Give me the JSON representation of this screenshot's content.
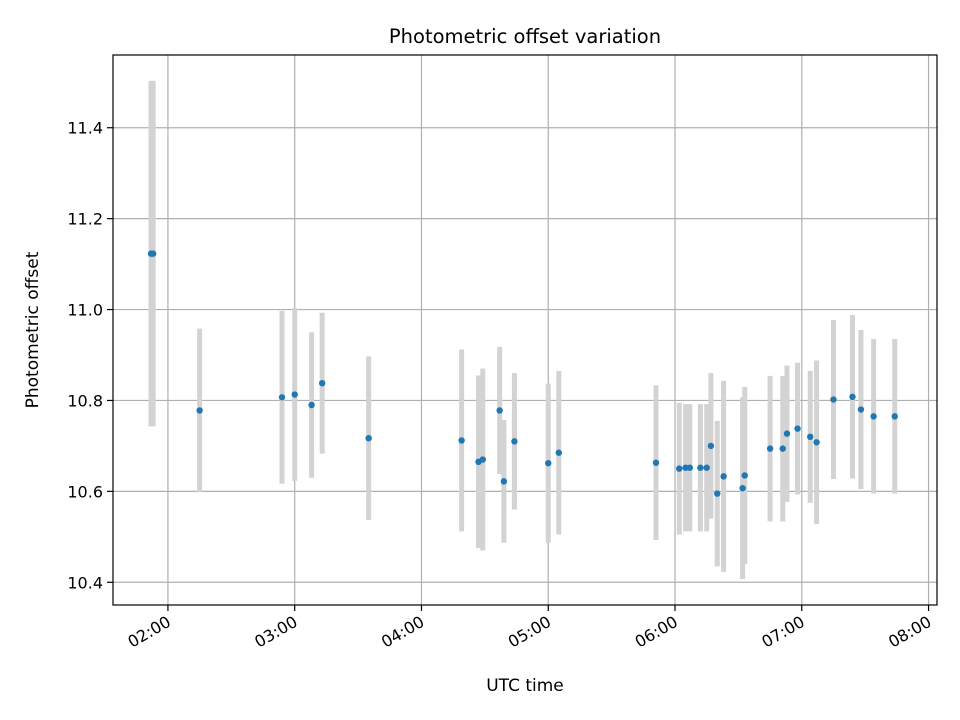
{
  "chart_data": {
    "type": "scatter",
    "title": "Photometric offset variation",
    "xlabel": "UTC time",
    "ylabel": "Photometric offset",
    "x_ticks": [
      "02:00",
      "03:00",
      "04:00",
      "05:00",
      "06:00",
      "07:00",
      "08:00"
    ],
    "y_ticks": [
      "10.4",
      "10.6",
      "10.8",
      "11.0",
      "11.2",
      "11.4"
    ],
    "xlim": [
      "01:34",
      "08:04"
    ],
    "ylim": [
      10.35,
      11.56
    ],
    "grid": true,
    "colors": {
      "point": "#1f77b4",
      "errorbar": "#d3d3d3",
      "grid": "#b0b0b0"
    },
    "points": [
      {
        "x": "01:52",
        "y": 11.123,
        "err": 0.38
      },
      {
        "x": "01:53",
        "y": 11.123,
        "err": 0.38
      },
      {
        "x": "02:15",
        "y": 10.778,
        "err": 0.18
      },
      {
        "x": "02:54",
        "y": 10.807,
        "err": 0.19
      },
      {
        "x": "03:00",
        "y": 10.813,
        "err": 0.19
      },
      {
        "x": "03:08",
        "y": 10.79,
        "err": 0.16
      },
      {
        "x": "03:13",
        "y": 10.838,
        "err": 0.155
      },
      {
        "x": "03:35",
        "y": 10.717,
        "err": 0.18
      },
      {
        "x": "04:19",
        "y": 10.712,
        "err": 0.2
      },
      {
        "x": "04:27",
        "y": 10.665,
        "err": 0.19
      },
      {
        "x": "04:29",
        "y": 10.67,
        "err": 0.2
      },
      {
        "x": "04:37",
        "y": 10.778,
        "err": 0.14
      },
      {
        "x": "04:39",
        "y": 10.622,
        "err": 0.135
      },
      {
        "x": "04:44",
        "y": 10.71,
        "err": 0.15
      },
      {
        "x": "05:00",
        "y": 10.662,
        "err": 0.175
      },
      {
        "x": "05:05",
        "y": 10.685,
        "err": 0.18
      },
      {
        "x": "05:51",
        "y": 10.663,
        "err": 0.17
      },
      {
        "x": "06:02",
        "y": 10.65,
        "err": 0.145
      },
      {
        "x": "06:05",
        "y": 10.652,
        "err": 0.14
      },
      {
        "x": "06:07",
        "y": 10.652,
        "err": 0.14
      },
      {
        "x": "06:12",
        "y": 10.652,
        "err": 0.14
      },
      {
        "x": "06:15",
        "y": 10.652,
        "err": 0.14
      },
      {
        "x": "06:17",
        "y": 10.7,
        "err": 0.16
      },
      {
        "x": "06:20",
        "y": 10.595,
        "err": 0.16
      },
      {
        "x": "06:23",
        "y": 10.633,
        "err": 0.21
      },
      {
        "x": "06:32",
        "y": 10.607,
        "err": 0.2
      },
      {
        "x": "06:33",
        "y": 10.635,
        "err": 0.195
      },
      {
        "x": "06:45",
        "y": 10.694,
        "err": 0.16
      },
      {
        "x": "06:51",
        "y": 10.694,
        "err": 0.16
      },
      {
        "x": "06:53",
        "y": 10.727,
        "err": 0.15
      },
      {
        "x": "06:58",
        "y": 10.738,
        "err": 0.145
      },
      {
        "x": "07:04",
        "y": 10.72,
        "err": 0.145
      },
      {
        "x": "07:07",
        "y": 10.708,
        "err": 0.18
      },
      {
        "x": "07:15",
        "y": 10.802,
        "err": 0.175
      },
      {
        "x": "07:24",
        "y": 10.808,
        "err": 0.18
      },
      {
        "x": "07:28",
        "y": 10.78,
        "err": 0.175
      },
      {
        "x": "07:34",
        "y": 10.765,
        "err": 0.17
      },
      {
        "x": "07:44",
        "y": 10.765,
        "err": 0.17
      }
    ]
  }
}
